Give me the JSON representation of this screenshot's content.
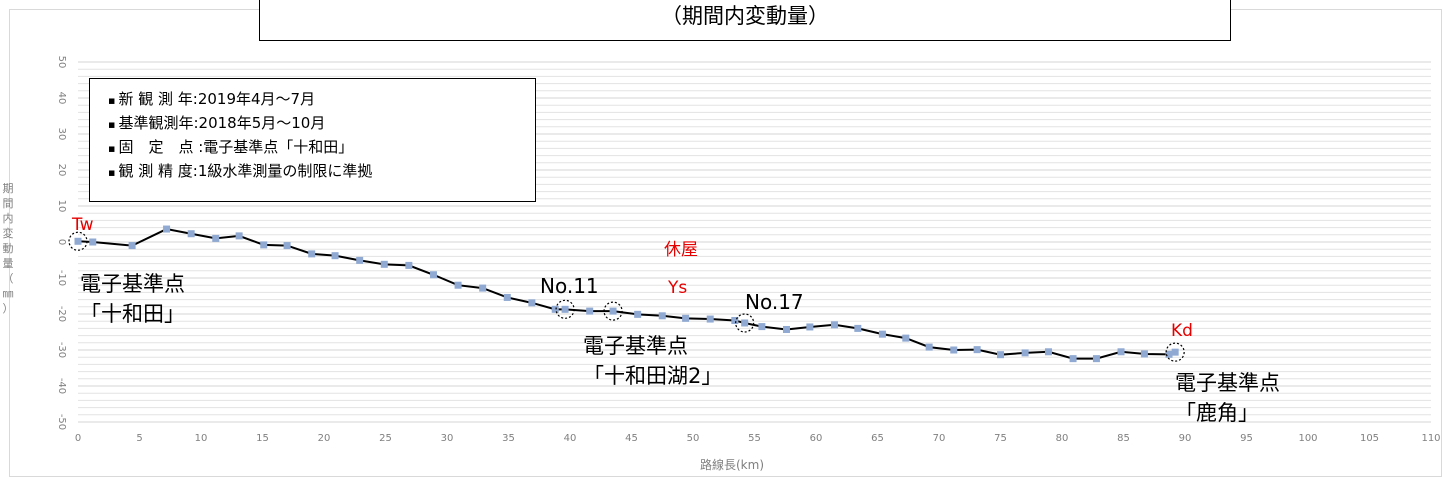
{
  "chart_title": "（期間内変動量）",
  "info": {
    "lines": [
      "新 観 測 年:2019年4月～7月",
      "基準観測年:2018年5月～10月",
      "固　定　点 :電子基準点「十和田」",
      "観 測 精 度:1級水準測量の制限に準拠"
    ]
  },
  "annotations": {
    "tw": "Tw",
    "yasumiya": "休屋",
    "ys": "Ys",
    "kd": "Kd",
    "no11": "No.11",
    "no17": "No.17",
    "station_towada_1": "電子基準点",
    "station_towada_2": "「十和田」",
    "station_lake_1": "電子基準点",
    "station_lake_2": "「十和田湖2」",
    "station_kazuno_1": "電子基準点",
    "station_kazuno_2": "「鹿角」"
  },
  "colors": {
    "line": "#000000",
    "marker": "#8fa9d2",
    "grid": "#e3e3e3",
    "red_label": "#e60000",
    "axis_text": "#808080"
  },
  "chart_data": {
    "type": "line",
    "title": "（期間内変動量）",
    "xlabel": "路線長(km)",
    "ylabel": "期間内変動量（㎜）",
    "xlim": [
      0,
      110
    ],
    "ylim": [
      -50,
      50
    ],
    "x_ticks": [
      "0",
      "5",
      "10",
      "15",
      "20",
      "25",
      "30",
      "35",
      "40",
      "45",
      "50",
      "55",
      "60",
      "65",
      "70",
      "75",
      "80",
      "85",
      "90",
      "95",
      "100",
      "105",
      "110"
    ],
    "y_ticks": [
      "50",
      "40",
      "30",
      "20",
      "10",
      "0",
      "-10",
      "-20",
      "-30",
      "-40",
      "-50"
    ],
    "grid": true,
    "legend": "none",
    "series": [
      {
        "x": [
          0.0,
          1.2,
          4.4,
          7.2,
          9.2,
          11.2,
          13.1,
          15.1,
          17.0,
          19.0,
          20.9,
          22.9,
          24.9,
          26.9,
          28.9,
          30.9,
          32.9,
          34.9,
          36.9,
          38.8,
          39.6,
          41.6,
          43.5,
          45.5,
          47.5,
          49.4,
          51.4,
          53.4,
          54.2,
          55.6,
          57.6,
          59.5,
          61.5,
          63.4,
          65.4,
          67.3,
          69.2,
          71.2,
          73.1,
          75.0,
          77.0,
          78.9,
          80.9,
          82.8,
          84.8,
          86.7,
          88.7,
          89.2
        ],
        "y": [
          0.2,
          0.0,
          -1.0,
          3.6,
          2.3,
          1.0,
          1.7,
          -0.8,
          -1.0,
          -3.3,
          -3.8,
          -5.1,
          -6.2,
          -6.5,
          -9.1,
          -12.0,
          -12.8,
          -15.4,
          -16.9,
          -18.7,
          -18.7,
          -19.2,
          -19.2,
          -20.1,
          -20.5,
          -21.2,
          -21.4,
          -21.8,
          -22.5,
          -23.5,
          -24.3,
          -23.6,
          -23.0,
          -24.0,
          -25.6,
          -26.7,
          -29.2,
          -30.0,
          -29.9,
          -31.3,
          -30.8,
          -30.5,
          -32.4,
          -32.4,
          -30.5,
          -31.1,
          -31.2,
          -30.6
        ]
      }
    ],
    "highlighted_points": [
      {
        "x": 0.0,
        "y": 0.2
      },
      {
        "x": 39.6,
        "y": -18.7
      },
      {
        "x": 43.5,
        "y": -19.2
      },
      {
        "x": 54.2,
        "y": -22.5
      },
      {
        "x": 89.2,
        "y": -30.6
      }
    ]
  }
}
